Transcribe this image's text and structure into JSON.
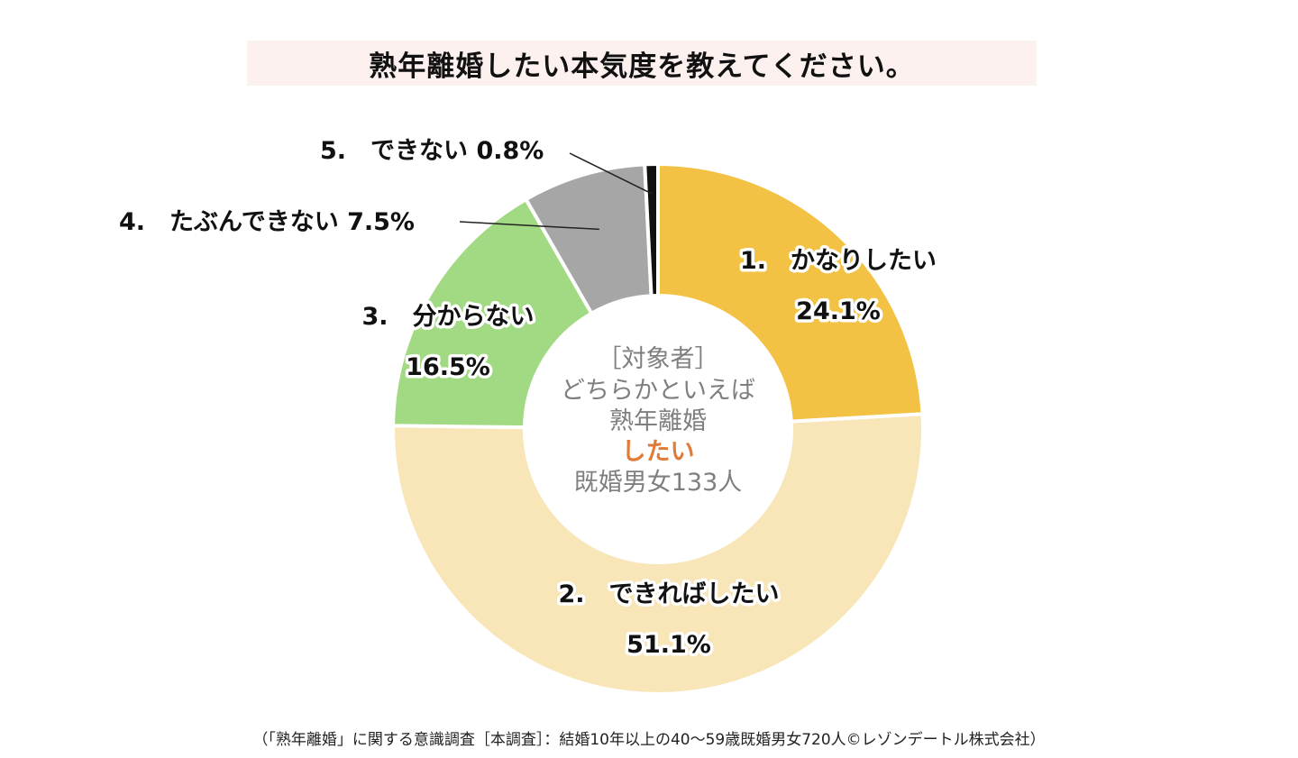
{
  "title": "熟年離婚したい本気度を教えてください。",
  "center_text": {
    "line1": "［対象者］",
    "line2": "どちらかといえば",
    "line3": "熟年離婚",
    "line4": "したい",
    "line5": "既婚男女133人"
  },
  "footnote": "（「熟年離婚」に関する意識調査［本調査］：結婚10年以上の40～59歳既婚男女720人©レゾンデートル株式会社）",
  "chart_data": {
    "type": "pie",
    "donut": true,
    "title": "熟年離婚したい本気度を教えてください。",
    "categories": [
      "1.　かなりしたい",
      "2.　できればしたい",
      "3.　分からない",
      "4.　たぶんできない",
      "5.　できない"
    ],
    "values": [
      24.1,
      51.1,
      16.5,
      7.5,
      0.8
    ],
    "value_labels": [
      "24.1%",
      "51.1%",
      "16.5%",
      "7.5%",
      "0.8%"
    ],
    "colors": [
      "#f3c244",
      "#f8e5b8",
      "#a2d983",
      "#a6a6a6",
      "#111111"
    ],
    "slice_label_lines": [
      [
        "1.　かなりしたい",
        "24.1%"
      ],
      [
        "2.　できればしたい",
        "51.1%"
      ],
      [
        "3.　分からない",
        "16.5%"
      ],
      [
        "4.　たぶんできない 7.5%"
      ],
      [
        "5.　できない 0.8%"
      ]
    ]
  }
}
